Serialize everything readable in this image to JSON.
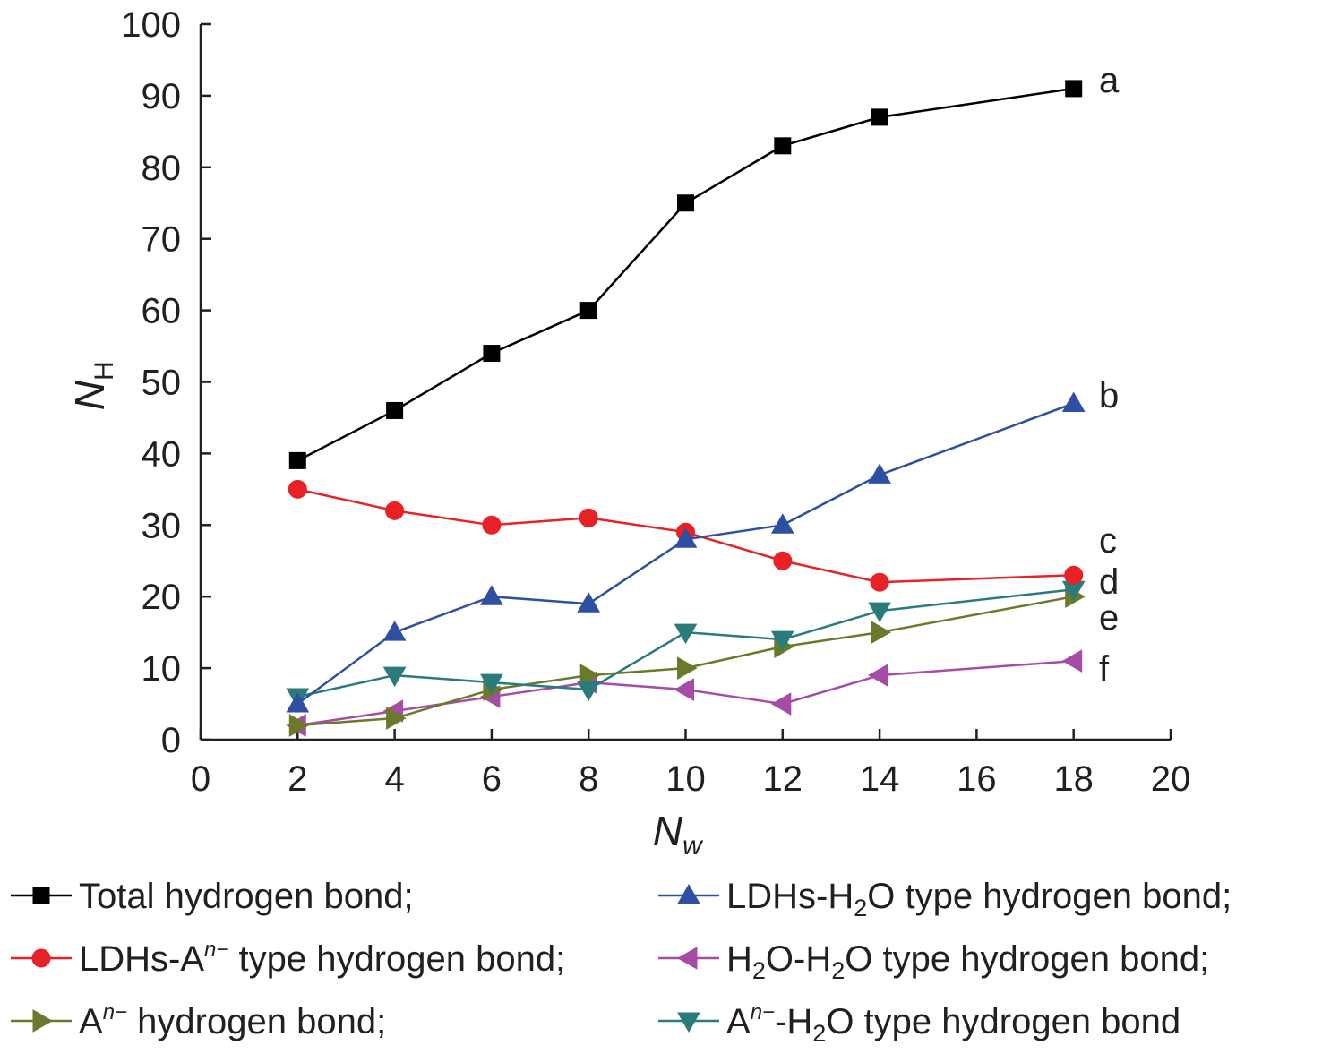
{
  "chart_data": {
    "type": "line",
    "xlabel": {
      "main": "N",
      "sub": "w"
    },
    "ylabel": {
      "main": "N",
      "sub": "H"
    },
    "xlim": [
      0,
      20
    ],
    "ylim": [
      0,
      100
    ],
    "x_ticks": [
      "0",
      "2",
      "4",
      "6",
      "8",
      "10",
      "12",
      "14",
      "16",
      "18",
      "20"
    ],
    "y_ticks": [
      "0",
      "10",
      "20",
      "30",
      "40",
      "50",
      "60",
      "70",
      "80",
      "90",
      "100"
    ],
    "grid": false,
    "legend_position": "bottom",
    "series": [
      {
        "key": "total",
        "curve_label": "a",
        "legend": [
          "Total hydrogen bond;"
        ],
        "color": "#000000",
        "marker": "square",
        "x": [
          2,
          4,
          6,
          8,
          10,
          12,
          14,
          18
        ],
        "y": [
          39,
          46,
          54,
          60,
          75,
          83,
          87,
          91
        ]
      },
      {
        "key": "ldhs_h2o",
        "curve_label": "b",
        "legend": [
          "LDHs-H",
          "2",
          "O type hydrogen bond;"
        ],
        "color": "#2e4fa2",
        "marker": "triangle-up",
        "x": [
          2,
          4,
          6,
          8,
          10,
          12,
          14,
          18
        ],
        "y": [
          5,
          15,
          20,
          19,
          28,
          30,
          37,
          47
        ]
      },
      {
        "key": "ldhs_an",
        "curve_label": "c",
        "legend": [
          "LDHs-A",
          "n−",
          " type hydrogen bond;"
        ],
        "color": "#e82127",
        "marker": "circle",
        "x": [
          2,
          4,
          6,
          8,
          10,
          12,
          14,
          18
        ],
        "y": [
          35,
          32,
          30,
          31,
          29,
          25,
          22,
          23
        ]
      },
      {
        "key": "an_h2o",
        "curve_label": "d",
        "legend": [
          "A",
          "n−",
          "-H",
          "2",
          "O type hydrogen bond"
        ],
        "color": "#2a7b7b",
        "marker": "triangle-down",
        "x": [
          2,
          4,
          6,
          8,
          10,
          12,
          14,
          18
        ],
        "y": [
          6,
          9,
          8,
          7,
          15,
          14,
          18,
          21
        ]
      },
      {
        "key": "an",
        "curve_label": "e",
        "legend": [
          "A",
          "n−",
          " hydrogen bond;"
        ],
        "color": "#6b7a2a",
        "marker": "triangle-right",
        "x": [
          2,
          4,
          6,
          8,
          10,
          12,
          14,
          18
        ],
        "y": [
          2,
          3,
          7,
          9,
          10,
          13,
          15,
          20
        ]
      },
      {
        "key": "h2o_h2o",
        "curve_label": "f",
        "legend": [
          "H",
          "2",
          "O-H",
          "2",
          "O type hydrogen bond;"
        ],
        "color": "#a64ca6",
        "marker": "triangle-left",
        "x": [
          2,
          4,
          6,
          8,
          10,
          12,
          14,
          18
        ],
        "y": [
          2,
          4,
          6,
          8,
          7,
          5,
          9,
          11
        ]
      }
    ]
  }
}
